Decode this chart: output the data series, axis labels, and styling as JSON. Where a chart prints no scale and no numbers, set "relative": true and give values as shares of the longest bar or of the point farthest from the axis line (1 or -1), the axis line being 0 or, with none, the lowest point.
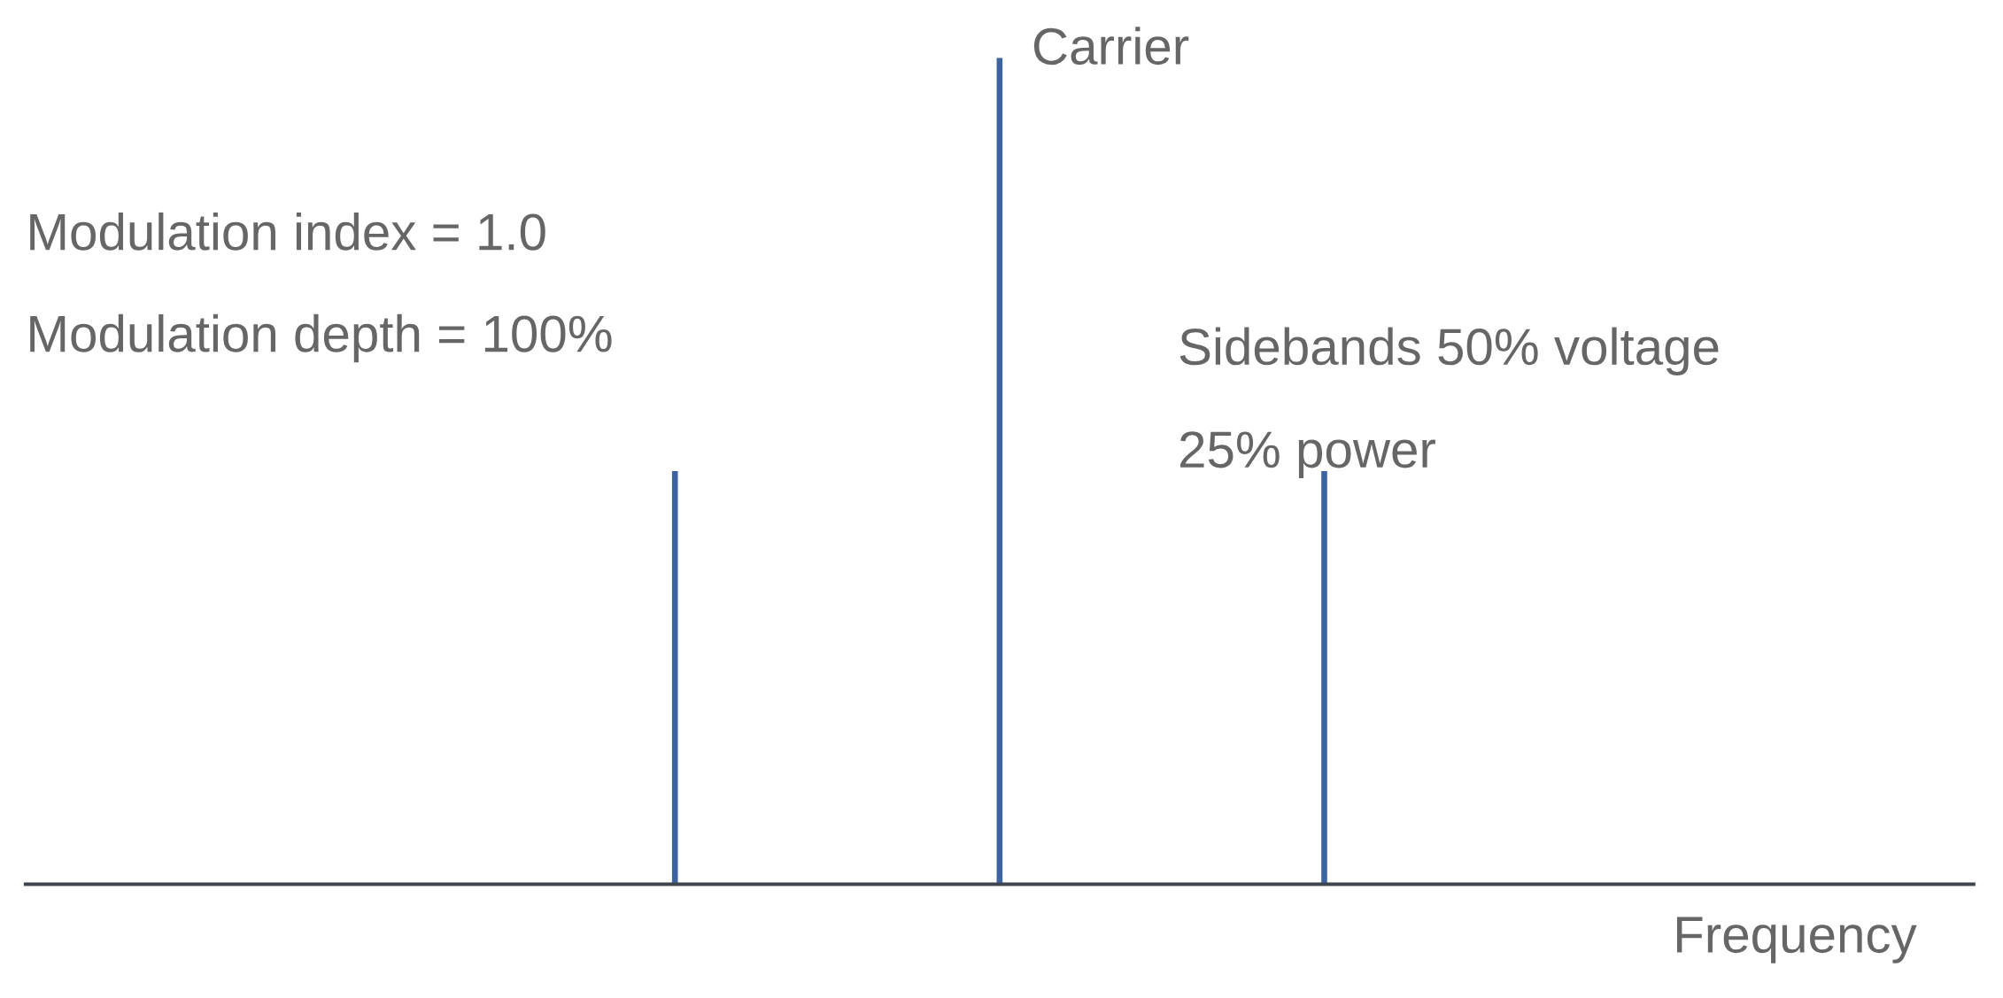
{
  "chart_data": {
    "type": "bar",
    "relative": true,
    "xlabel": "Frequency",
    "categories": [
      null,
      null,
      null
    ],
    "series": [
      {
        "color": "#3b64a0",
        "values": [
          0.5,
          1,
          0.5
        ]
      }
    ],
    "annotations": [
      "Carrier",
      "Modulation index = 1.0",
      "Modulation depth = 100%",
      "Sidebands 50% voltage",
      "25% power"
    ],
    "grid": false
  }
}
